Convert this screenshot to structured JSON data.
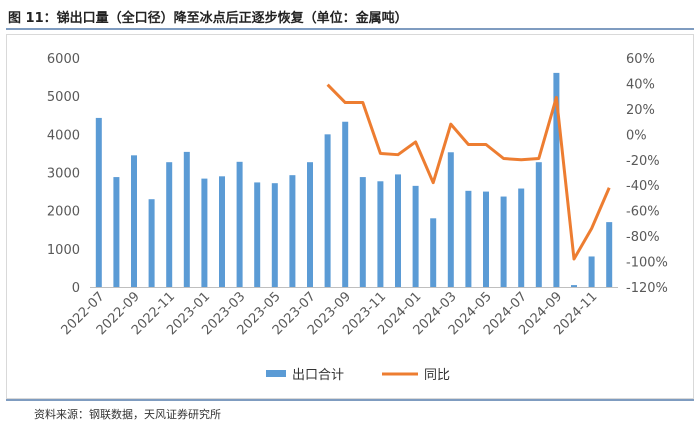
{
  "title": "图 11：锑出口量（全口径）降至冰点后正逐步恢复（单位：金属吨）",
  "source": "资料来源：钢联数据，天风证券研究所",
  "colors": {
    "bar": "#5b9bd5",
    "line": "#ed7d31",
    "grid": "#d9d9d9",
    "axis": "#bfbfbf"
  },
  "chart_data": {
    "type": "bar+line",
    "categories": [
      "2022-07",
      "2022-08",
      "2022-09",
      "2022-10",
      "2022-11",
      "2022-12",
      "2023-01",
      "2023-02",
      "2023-03",
      "2023-04",
      "2023-05",
      "2023-06",
      "2023-07",
      "2023-08",
      "2023-09",
      "2023-10",
      "2023-11",
      "2023-12",
      "2024-01",
      "2024-02",
      "2024-03",
      "2024-04",
      "2024-05",
      "2024-06",
      "2024-07",
      "2024-08",
      "2024-09",
      "2024-10",
      "2024-11",
      "2024-12"
    ],
    "x_tick_labels": [
      "2022-07",
      "2022-09",
      "2022-11",
      "2023-01",
      "2023-03",
      "2023-05",
      "2023-07",
      "2023-09",
      "2023-11",
      "2024-01",
      "2024-03",
      "2024-05",
      "2024-07",
      "2024-09",
      "2024-11"
    ],
    "series": [
      {
        "name": "出口合计",
        "type": "bar",
        "axis": "left",
        "values": [
          4430,
          2880,
          3450,
          2300,
          3270,
          3540,
          2840,
          2900,
          3280,
          2740,
          2720,
          2930,
          3270,
          4000,
          4330,
          2880,
          2770,
          2950,
          2650,
          1800,
          3530,
          2520,
          2500,
          2370,
          2580,
          3270,
          5610,
          50,
          800,
          1700
        ]
      },
      {
        "name": "同比",
        "type": "line",
        "axis": "right",
        "values": [
          null,
          null,
          null,
          null,
          null,
          null,
          null,
          null,
          null,
          null,
          null,
          null,
          null,
          39,
          25,
          25,
          -15,
          -16,
          -6,
          -38,
          8,
          -8,
          -8,
          -19,
          -20,
          -19,
          29,
          -98,
          -74,
          -42
        ]
      }
    ],
    "y_left": {
      "min": 0,
      "max": 6000,
      "ticks": [
        0,
        1000,
        2000,
        3000,
        4000,
        5000,
        6000
      ],
      "tick_labels": [
        "0",
        "1000",
        "2000",
        "3000",
        "4000",
        "5000",
        "6000"
      ]
    },
    "y_right": {
      "min": -120,
      "max": 60,
      "ticks": [
        -120,
        -100,
        -80,
        -60,
        -40,
        -20,
        0,
        20,
        40,
        60
      ],
      "tick_labels": [
        "-120%",
        "-100%",
        "-80%",
        "-60%",
        "-40%",
        "-20%",
        "0%",
        "20%",
        "40%",
        "60%"
      ]
    },
    "legend": {
      "position": "bottom",
      "items": [
        "出口合计",
        "同比"
      ]
    },
    "grid": false
  }
}
